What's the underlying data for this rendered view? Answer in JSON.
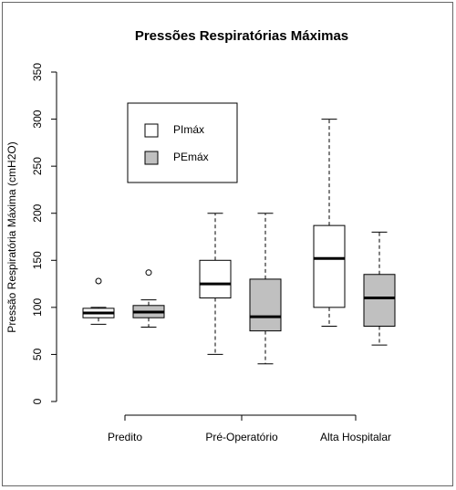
{
  "chart_data": {
    "type": "box",
    "title": "Pressões Respiratórias Máximas",
    "y_label": "Pressão Respiratória Máxima (cmH2O)",
    "categories": [
      "Predito",
      "Pré-Operatório",
      "Alta Hospitalar"
    ],
    "ylim": [
      0,
      350
    ],
    "yticks": [
      0,
      50,
      100,
      150,
      200,
      250,
      300,
      350
    ],
    "legend": "top-left",
    "series": [
      {
        "name": "PImáx",
        "color": "#ffffff",
        "boxes": [
          {
            "whislo": 82,
            "q1": 89,
            "med": 94,
            "q3": 99,
            "whishi": 100,
            "fliers": [
              128
            ]
          },
          {
            "whislo": 50,
            "q1": 110,
            "med": 125,
            "q3": 150,
            "whishi": 200,
            "fliers": []
          },
          {
            "whislo": 80,
            "q1": 100,
            "med": 152,
            "q3": 187,
            "whishi": 300,
            "fliers": []
          }
        ]
      },
      {
        "name": "PEmáx",
        "color": "#c0c0c0",
        "boxes": [
          {
            "whislo": 79,
            "q1": 89,
            "med": 95,
            "q3": 102,
            "whishi": 108,
            "fliers": [
              137
            ]
          },
          {
            "whislo": 40,
            "q1": 75,
            "med": 90,
            "q3": 130,
            "whishi": 200,
            "fliers": []
          },
          {
            "whislo": 60,
            "q1": 80,
            "med": 110,
            "q3": 135,
            "whishi": 180,
            "fliers": []
          }
        ]
      }
    ]
  }
}
